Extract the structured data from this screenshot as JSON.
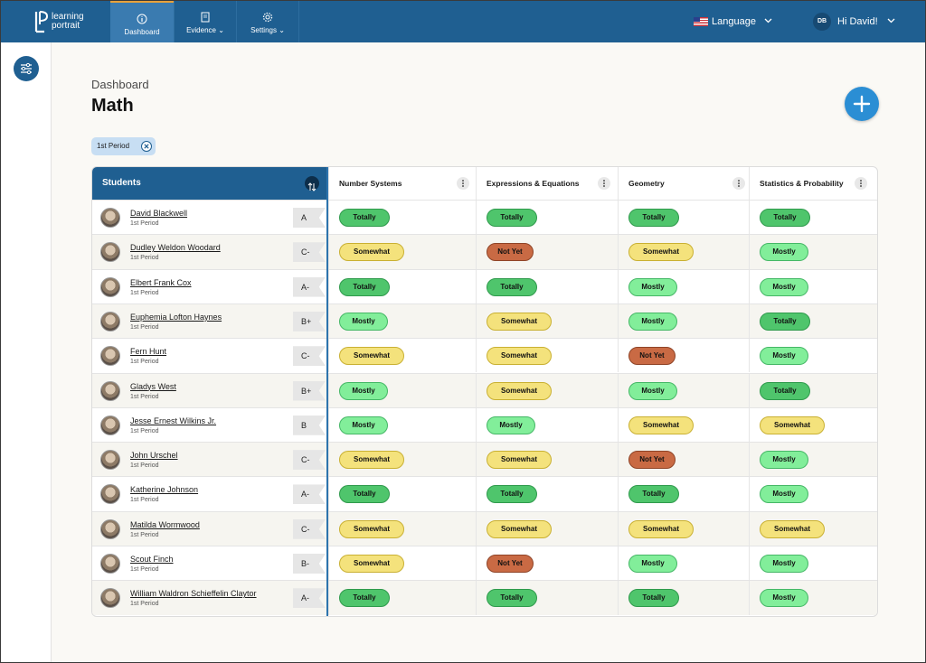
{
  "app": {
    "logo_line1": "learning",
    "logo_line2": "portrait",
    "logo_mark": "LP"
  },
  "nav": {
    "tabs": [
      {
        "label": "Dashboard",
        "icon": "info-circle-icon",
        "active": true
      },
      {
        "label": "Evidence",
        "icon": "book-icon",
        "active": false
      },
      {
        "label": "Settings",
        "icon": "gear-icon",
        "active": false
      }
    ],
    "language_label": "Language",
    "user_initials": "DB",
    "user_greeting": "Hi David!"
  },
  "header": {
    "breadcrumb": "Dashboard",
    "title": "Math"
  },
  "filter_chip": {
    "label": "1st Period"
  },
  "table": {
    "students_header": "Students",
    "columns": [
      "Number Systems",
      "Expressions & Equations",
      "Geometry",
      "Statistics & Probability"
    ],
    "rows": [
      {
        "name": "David Blackwell",
        "period": "1st Period",
        "grade": "A",
        "ratings": [
          "Totally",
          "Totally",
          "Totally",
          "Totally"
        ]
      },
      {
        "name": "Dudley Weldon Woodard",
        "period": "1st Period",
        "grade": "C-",
        "ratings": [
          "Somewhat",
          "Not Yet",
          "Somewhat",
          "Mostly"
        ]
      },
      {
        "name": "Elbert Frank Cox",
        "period": "1st Period",
        "grade": "A-",
        "ratings": [
          "Totally",
          "Totally",
          "Mostly",
          "Mostly"
        ]
      },
      {
        "name": "Euphemia Lofton Haynes",
        "period": "1st Period",
        "grade": "B+",
        "ratings": [
          "Mostly",
          "Somewhat",
          "Mostly",
          "Totally"
        ]
      },
      {
        "name": "Fern Hunt",
        "period": "1st Period",
        "grade": "C-",
        "ratings": [
          "Somewhat",
          "Somewhat",
          "Not Yet",
          "Mostly"
        ]
      },
      {
        "name": "Gladys West",
        "period": "1st Period",
        "grade": "B+",
        "ratings": [
          "Mostly",
          "Somewhat",
          "Mostly",
          "Totally"
        ]
      },
      {
        "name": "Jesse Ernest Wilkins Jr.",
        "period": "1st Period",
        "grade": "B",
        "ratings": [
          "Mostly",
          "Mostly",
          "Somewhat",
          "Somewhat"
        ]
      },
      {
        "name": "John Urschel",
        "period": "1st Period",
        "grade": "C-",
        "ratings": [
          "Somewhat",
          "Somewhat",
          "Not Yet",
          "Mostly"
        ]
      },
      {
        "name": "Katherine Johnson",
        "period": "1st Period",
        "grade": "A-",
        "ratings": [
          "Totally",
          "Totally",
          "Totally",
          "Mostly"
        ]
      },
      {
        "name": "Matilda Wormwood",
        "period": "1st Period",
        "grade": "C-",
        "ratings": [
          "Somewhat",
          "Somewhat",
          "Somewhat",
          "Somewhat"
        ]
      },
      {
        "name": "Scout Finch",
        "period": "1st Period",
        "grade": "B-",
        "ratings": [
          "Somewhat",
          "Not Yet",
          "Mostly",
          "Mostly"
        ]
      },
      {
        "name": "William Waldron Schieffelin Claytor",
        "period": "1st Period",
        "grade": "A-",
        "ratings": [
          "Totally",
          "Totally",
          "Totally",
          "Mostly"
        ]
      }
    ]
  },
  "colors": {
    "nav_blue": "#1f5f91",
    "active_tab": "#3a7bb0",
    "accent_orange": "#e8a23a",
    "add_button": "#2b8ed4",
    "totally": "#4fc56c",
    "mostly": "#82ee9a",
    "somewhat": "#f4e27c",
    "not_yet": "#c96a44"
  }
}
